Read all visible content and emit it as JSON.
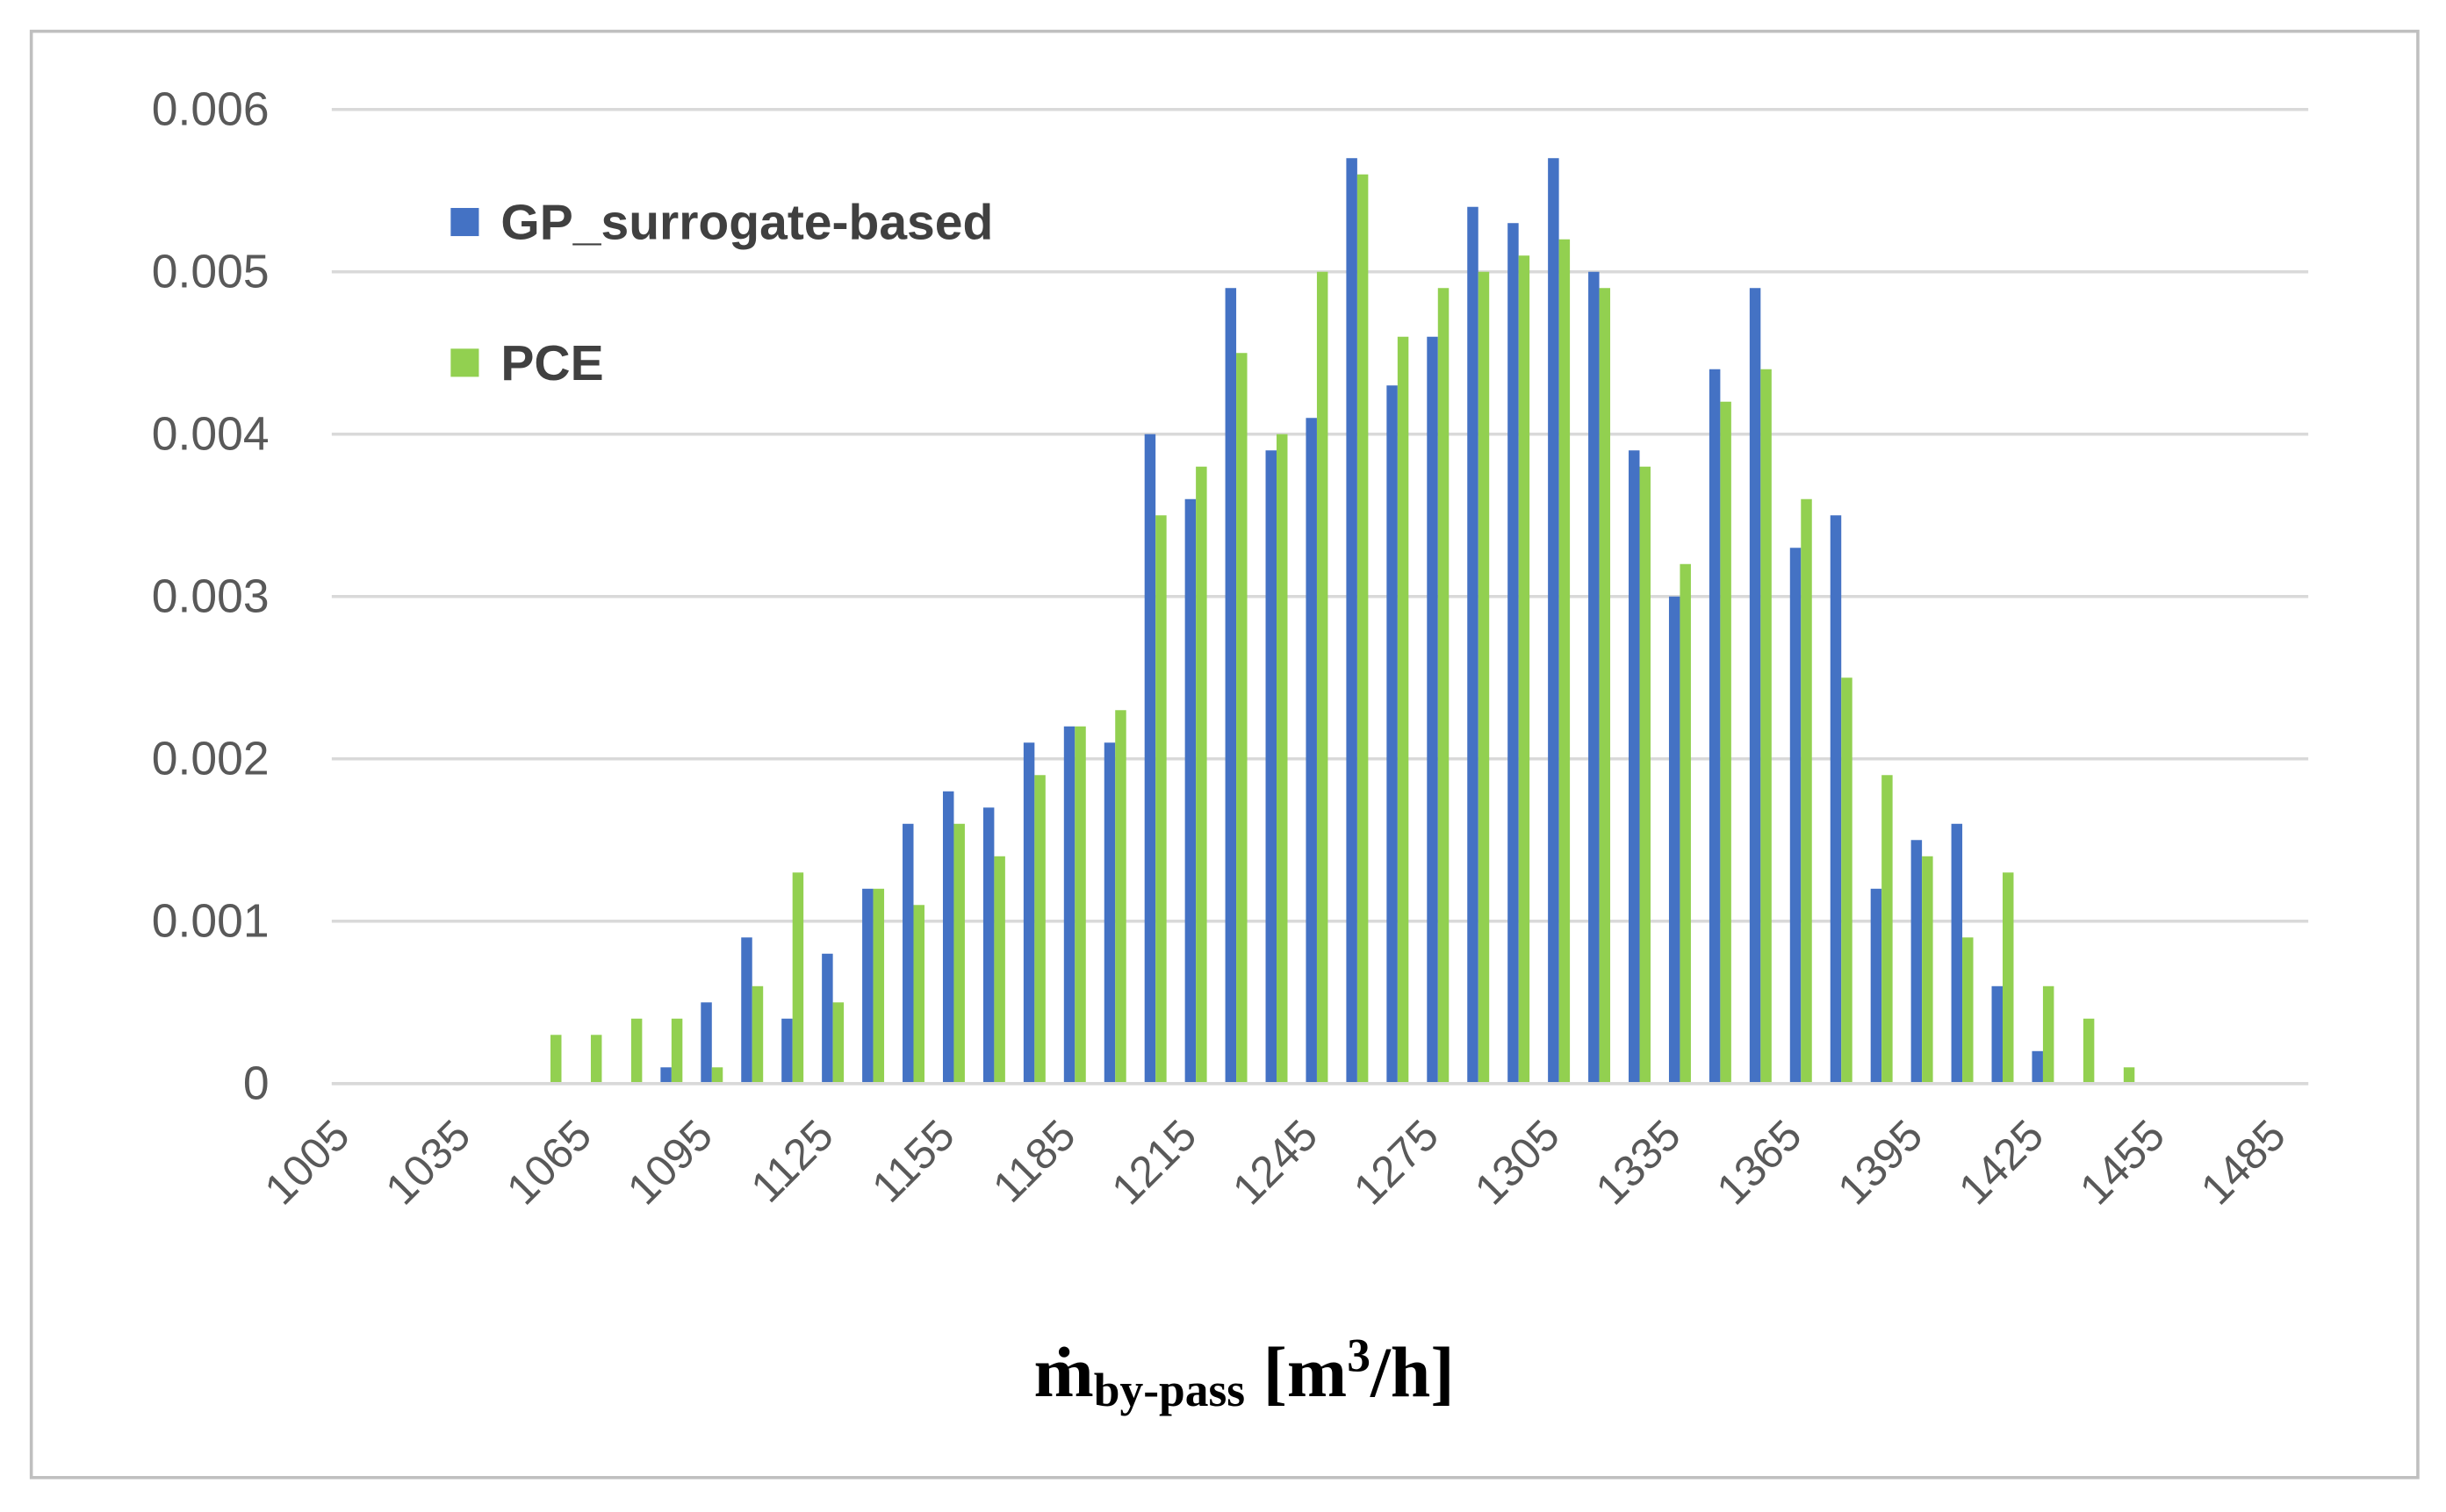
{
  "chart_data": {
    "type": "bar",
    "xlabel": [
      "ṁ",
      "by-pass",
      " [m",
      "3",
      "/h]"
    ],
    "categories": [
      "1005",
      null,
      null,
      "1035",
      null,
      null,
      "1065",
      null,
      null,
      "1095",
      null,
      null,
      "1125",
      null,
      null,
      "1155",
      null,
      null,
      "1185",
      null,
      null,
      "1215",
      null,
      null,
      "1245",
      null,
      null,
      "1275",
      null,
      null,
      "1305",
      null,
      null,
      "1335",
      null,
      null,
      "1365",
      null,
      null,
      "1395",
      null,
      null,
      "1425",
      null,
      null,
      "1455",
      null,
      null,
      "1485"
    ],
    "series": [
      {
        "name": "GP_surrogate-based",
        "color": "#4472c4",
        "values": [
          0,
          0,
          0,
          0,
          0,
          0,
          0,
          0,
          0.0001,
          0.0005,
          0.0009,
          0.0004,
          0.0008,
          0.0012,
          0.0016,
          0.0018,
          0.0017,
          0.0021,
          0.0022,
          0.0021,
          0.004,
          0.0036,
          0.0049,
          0.0039,
          0.0041,
          0.0057,
          0.0043,
          0.0046,
          0.0054,
          0.0053,
          0.0057,
          0.005,
          0.0039,
          0.003,
          0.0044,
          0.0049,
          0.0033,
          0.0035,
          0.0012,
          0.0015,
          0.0016,
          0.0006,
          0.0002,
          0,
          0,
          0,
          0,
          0,
          0
        ]
      },
      {
        "name": "PCE",
        "color": "#92d050",
        "values": [
          0,
          0,
          0,
          0,
          0,
          0.0003,
          0.0003,
          0.0004,
          0.0004,
          0.0001,
          0.0006,
          0.0013,
          0.0005,
          0.0012,
          0.0011,
          0.0016,
          0.0014,
          0.0019,
          0.0022,
          0.0023,
          0.0035,
          0.0038,
          0.0045,
          0.004,
          0.005,
          0.0056,
          0.0046,
          0.0049,
          0.005,
          0.0051,
          0.0052,
          0.0049,
          0.0038,
          0.0032,
          0.0042,
          0.0044,
          0.0036,
          0.0025,
          0.0019,
          0.0014,
          0.0009,
          0.0013,
          0.0006,
          0.0004,
          0.0001,
          0,
          0,
          0,
          0
        ]
      }
    ],
    "ylim": [
      0,
      0.006
    ],
    "yticks": [
      0,
      0.001,
      0.002,
      0.003,
      0.004,
      0.005,
      0.006
    ],
    "grid": true,
    "legend": "upper left"
  }
}
